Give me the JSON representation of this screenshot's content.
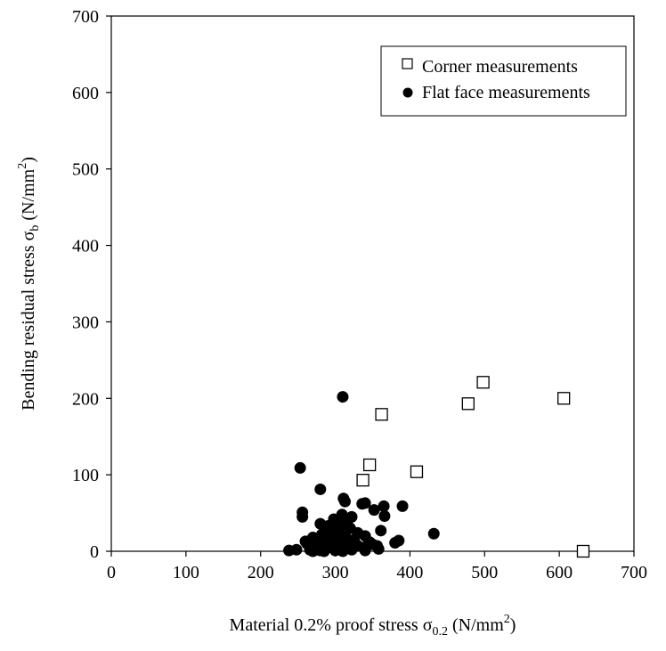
{
  "chart_data": {
    "type": "scatter",
    "title": "",
    "xlabel_main": "Material 0.2% proof stress σ",
    "xlabel_sub": "0.2",
    "xlabel_unit_pre": " (N/mm",
    "xlabel_unit_sup": "2",
    "xlabel_unit_post": ")",
    "ylabel_main": "Bending residual stress σ",
    "ylabel_sub": "b",
    "ylabel_unit_pre": " (N/mm",
    "ylabel_unit_sup": "2",
    "ylabel_unit_post": ")",
    "xlim": [
      0,
      700
    ],
    "ylim": [
      0,
      700
    ],
    "xticks": [
      0,
      100,
      200,
      300,
      400,
      500,
      600,
      700
    ],
    "yticks": [
      0,
      100,
      200,
      300,
      400,
      500,
      600,
      700
    ],
    "grid": false,
    "legend_position": "top-right",
    "series": [
      {
        "name": "Corner measurements",
        "marker": "hollow-square",
        "color": "#000000",
        "points": [
          [
            337,
            93
          ],
          [
            346,
            113
          ],
          [
            362,
            179
          ],
          [
            409,
            104
          ],
          [
            478,
            193
          ],
          [
            498,
            221
          ],
          [
            606,
            200
          ],
          [
            632,
            0
          ]
        ]
      },
      {
        "name": "Flat face measurements",
        "marker": "filled-circle",
        "color": "#000000",
        "points": [
          [
            310,
            202
          ],
          [
            253,
            109
          ],
          [
            280,
            81
          ],
          [
            256,
            51
          ],
          [
            256,
            45
          ],
          [
            311,
            69
          ],
          [
            313,
            65
          ],
          [
            336,
            62
          ],
          [
            340,
            63
          ],
          [
            365,
            59
          ],
          [
            390,
            59
          ],
          [
            352,
            54
          ],
          [
            366,
            46
          ],
          [
            309,
            48
          ],
          [
            322,
            45
          ],
          [
            298,
            42
          ],
          [
            303,
            38
          ],
          [
            316,
            38
          ],
          [
            280,
            36
          ],
          [
            310,
            35
          ],
          [
            290,
            33
          ],
          [
            305,
            30
          ],
          [
            300,
            28
          ],
          [
            320,
            30
          ],
          [
            361,
            27
          ],
          [
            287,
            26
          ],
          [
            296,
            24
          ],
          [
            330,
            24
          ],
          [
            432,
            23
          ],
          [
            282,
            22
          ],
          [
            300,
            20
          ],
          [
            313,
            20
          ],
          [
            340,
            20
          ],
          [
            270,
            18
          ],
          [
            290,
            17
          ],
          [
            308,
            16
          ],
          [
            325,
            15
          ],
          [
            260,
            13
          ],
          [
            278,
            12
          ],
          [
            295,
            11
          ],
          [
            318,
            12
          ],
          [
            346,
            12
          ],
          [
            385,
            14
          ],
          [
            380,
            11
          ],
          [
            262,
            10
          ],
          [
            286,
            9
          ],
          [
            303,
            8
          ],
          [
            329,
            8
          ],
          [
            350,
            9
          ],
          [
            270,
            6
          ],
          [
            292,
            5
          ],
          [
            315,
            5
          ],
          [
            338,
            5
          ],
          [
            356,
            7
          ],
          [
            238,
            1
          ],
          [
            248,
            2
          ],
          [
            266,
            2
          ],
          [
            280,
            1
          ],
          [
            300,
            1
          ],
          [
            322,
            2
          ],
          [
            358,
            3
          ],
          [
            285,
            0
          ],
          [
            310,
            0
          ],
          [
            270,
            0
          ],
          [
            340,
            1
          ]
        ]
      }
    ]
  }
}
